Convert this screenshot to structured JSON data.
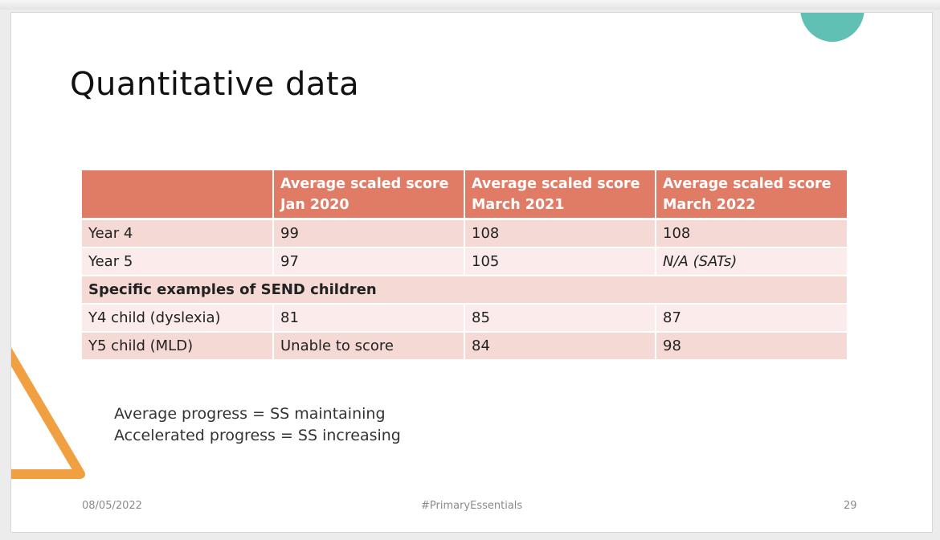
{
  "slide": {
    "title": "Quantitative data",
    "table": {
      "headers": [
        "",
        [
          "Average scaled score",
          "Jan 2020"
        ],
        [
          "Average scaled score",
          "March 2021"
        ],
        [
          "Average scaled score",
          "March 2022"
        ]
      ],
      "rows": [
        {
          "label": "Year 4",
          "values": [
            "99",
            "108",
            "108"
          ]
        },
        {
          "label": "Year 5",
          "values": [
            "97",
            "105",
            "N/A (SATs)"
          ]
        }
      ],
      "section_title": "Specific examples of SEND children",
      "send_rows": [
        {
          "label": "Y4 child (dyslexia)",
          "values": [
            "81",
            "85",
            "87"
          ]
        },
        {
          "label": "Y5 child (MLD)",
          "values": [
            "Unable to score",
            "84",
            "98"
          ]
        }
      ]
    },
    "notes": [
      "Average progress = SS maintaining",
      "Accelerated progress = SS increasing"
    ],
    "footer": {
      "date": "08/05/2022",
      "hashtag": "#PrimaryEssentials",
      "page_number": "29"
    },
    "colors": {
      "header_fill": "#e07b66",
      "row_dark": "#f5d9d4",
      "row_light": "#fbeceb",
      "teal_accent": "#5fc0b3",
      "orange_accent": "#f0a040"
    }
  }
}
